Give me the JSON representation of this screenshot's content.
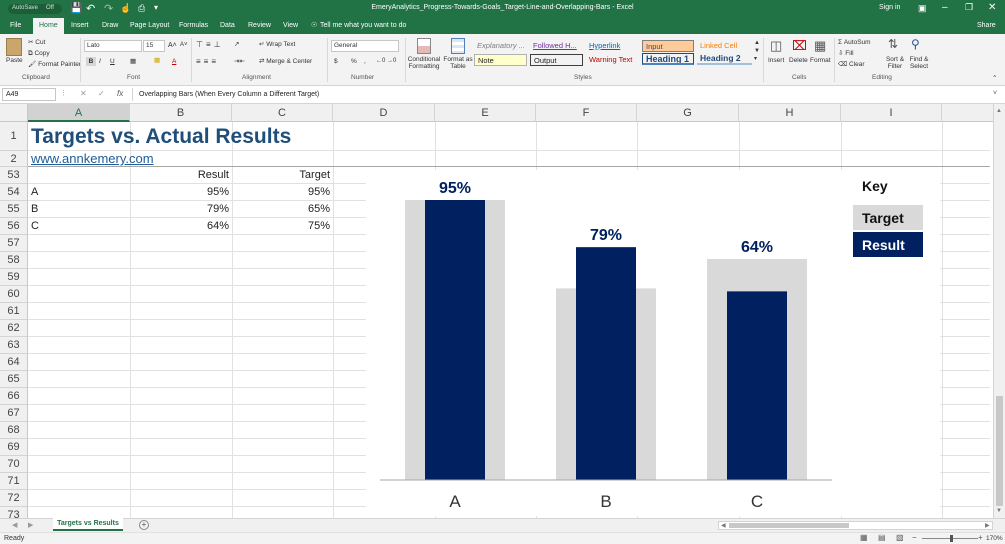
{
  "window": {
    "autosave": "AutoSave",
    "autosave_state": "Off",
    "title": "EmeryAnalytics_Progress-Towards-Goals_Target-Line-and-Overlapping-Bars - Excel",
    "signin": "Sign in"
  },
  "tabs": [
    "File",
    "Home",
    "Insert",
    "Draw",
    "Page Layout",
    "Formulas",
    "Data",
    "Review",
    "View"
  ],
  "tell_me": "Tell me what you want to do",
  "share": "Share",
  "ribbon": {
    "clipboard": {
      "paste": "Paste",
      "cut": "Cut",
      "copy": "Copy",
      "format_painter": "Format Painter",
      "group": "Clipboard"
    },
    "font": {
      "name": "Lato",
      "size": "15",
      "bold": "B",
      "italic": "I",
      "underline": "U",
      "group": "Font"
    },
    "alignment": {
      "wrap": "Wrap Text",
      "merge": "Merge & Center",
      "group": "Alignment"
    },
    "number": {
      "format": "General",
      "currency": "$",
      "percent": "%",
      "comma": ",",
      "group": "Number"
    },
    "styles": {
      "conditional": "Conditional Formatting",
      "format_table": "Format as Table",
      "explanatory": "Explanatory ...",
      "followed": "Followed H...",
      "hyperlink": "Hyperlink",
      "input": "Input",
      "linked": "Linked Cell",
      "note": "Note",
      "output": "Output",
      "warning": "Warning Text",
      "heading1": "Heading 1",
      "heading2": "Heading 2",
      "group": "Styles"
    },
    "cells": {
      "insert": "Insert",
      "delete": "Delete",
      "format": "Format",
      "group": "Cells"
    },
    "editing": {
      "autosum": "AutoSum",
      "fill": "Fill",
      "clear": "Clear",
      "sort": "Sort & Filter",
      "find": "Find & Select",
      "group": "Editing"
    }
  },
  "formula_bar": {
    "cell_ref": "A49",
    "fx": "fx",
    "content": "Overlapping Bars (When Every Column a Different Target)"
  },
  "columns": [
    "A",
    "B",
    "C",
    "D",
    "E",
    "F",
    "G",
    "H",
    "I"
  ],
  "rows": [
    "1",
    "2",
    "53",
    "54",
    "55",
    "56",
    "57",
    "58",
    "59",
    "60",
    "61",
    "62",
    "63",
    "64",
    "65",
    "66",
    "67",
    "68",
    "69",
    "70",
    "71",
    "72",
    "73"
  ],
  "sheet": {
    "title": "Targets vs. Actual Results",
    "link": "www.annkemery.com",
    "header": {
      "result": "Result",
      "target": "Target"
    },
    "data": [
      {
        "label": "A",
        "result": "95%",
        "target": "95%"
      },
      {
        "label": "B",
        "result": "79%",
        "target": "65%"
      },
      {
        "label": "C",
        "result": "64%",
        "target": "75%"
      }
    ]
  },
  "chart_data": {
    "type": "bar",
    "categories": [
      "A",
      "B",
      "C"
    ],
    "series": [
      {
        "name": "Target",
        "values": [
          95,
          65,
          75
        ],
        "color": "#d9d9d9"
      },
      {
        "name": "Result",
        "values": [
          95,
          79,
          64
        ],
        "color": "#002060"
      }
    ],
    "data_labels": [
      "95%",
      "79%",
      "64%"
    ],
    "ylim": [
      0,
      100
    ],
    "grid": false,
    "key_title": "Key",
    "legend_placement": "right"
  },
  "sheet_tab": "Targets vs Results",
  "status": {
    "ready": "Ready",
    "zoom": "170%"
  },
  "colors": {
    "excel_green": "#217346",
    "result_navy": "#002060",
    "target_gray": "#d9d9d9",
    "title_blue": "#1f4e79",
    "link_blue": "#1f5c99"
  }
}
